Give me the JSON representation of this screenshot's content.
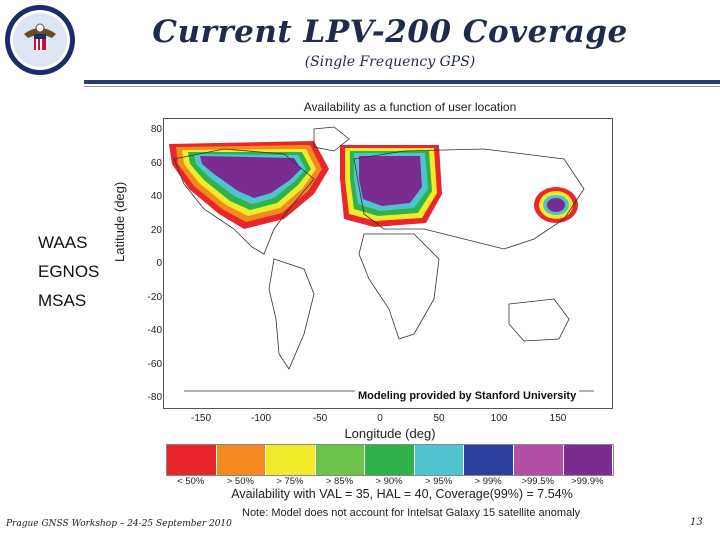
{
  "slide": {
    "title": "Current LPV-200 Coverage",
    "subtitle": "(Single Frequency GPS)",
    "systems": [
      "WAAS",
      "EGNOS",
      "MSAS"
    ],
    "footer": "Prague GNSS Workshop – 24-25 September 2010",
    "page_number": "13",
    "note": "Note: Model does not account for Intelsat Galaxy 15 satellite anomaly"
  },
  "map": {
    "title": "Availability as a function of user location",
    "xlabel": "Longitude (deg)",
    "ylabel": "Latitude (deg)",
    "xticks": [
      "-150",
      "-100",
      "-50",
      "0",
      "50",
      "100",
      "150"
    ],
    "yticks": [
      "80",
      "60",
      "40",
      "20",
      "0",
      "-20",
      "-40",
      "-60",
      "-80"
    ],
    "credit": "Modeling provided by Stanford University"
  },
  "legend": {
    "labels": [
      "< 50%",
      "> 50%",
      "> 75%",
      "> 85%",
      "> 90%",
      "> 95%",
      "> 99%",
      ">99.5%",
      ">99.9%"
    ],
    "colors": [
      "#e8262b",
      "#f28a1f",
      "#f2ea2a",
      "#6cc24a",
      "#2fb24a",
      "#4fc3d0",
      "#2f3f9e",
      "#b44fa6",
      "#7b2c91"
    ],
    "summary": "Availability with VAL = 35,  HAL = 40, Coverage(99%) = 7.54%"
  }
}
